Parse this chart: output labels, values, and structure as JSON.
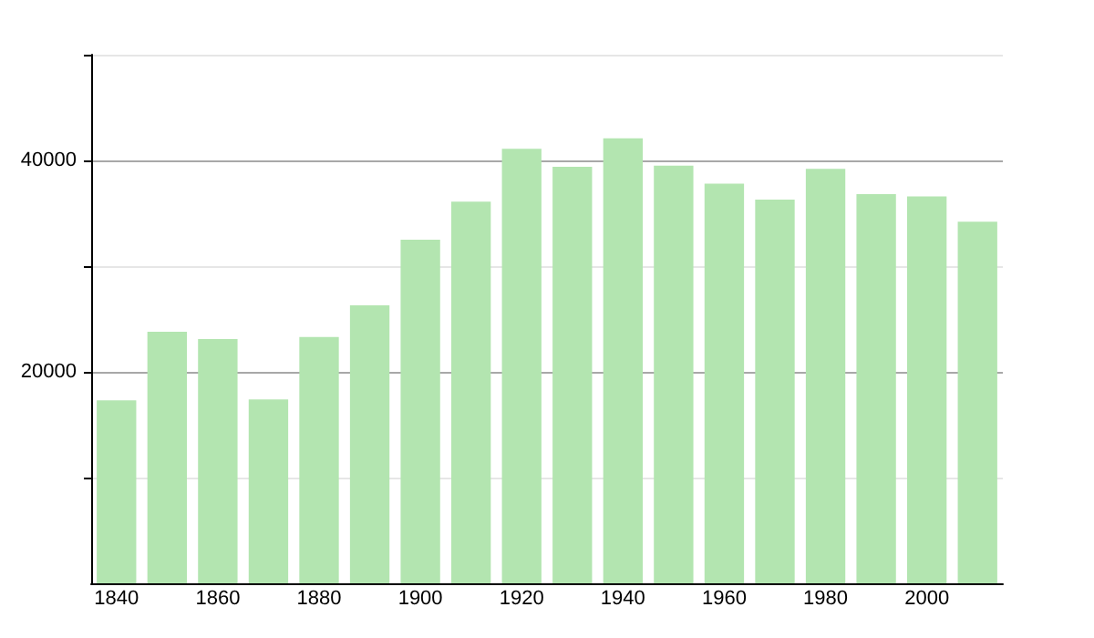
{
  "chart_data": {
    "type": "bar",
    "categories": [
      "1840",
      null,
      "1860",
      null,
      "1880",
      null,
      "1900",
      null,
      "1920",
      null,
      "1940",
      null,
      "1960",
      null,
      "1980",
      null,
      "2000",
      null
    ],
    "values": [
      17300,
      23800,
      23100,
      17400,
      23300,
      26300,
      32500,
      36100,
      41100,
      39400,
      42100,
      39500,
      37800,
      36300,
      39200,
      36800,
      36600,
      34200
    ],
    "color": "#b3e5b0",
    "ylim": [
      0,
      50000
    ],
    "yticks": [
      {
        "value": 10000,
        "label": null
      },
      20000,
      {
        "value": 30000,
        "label": null
      },
      40000,
      {
        "value": 50000,
        "label": null
      }
    ],
    "grid": "y"
  }
}
